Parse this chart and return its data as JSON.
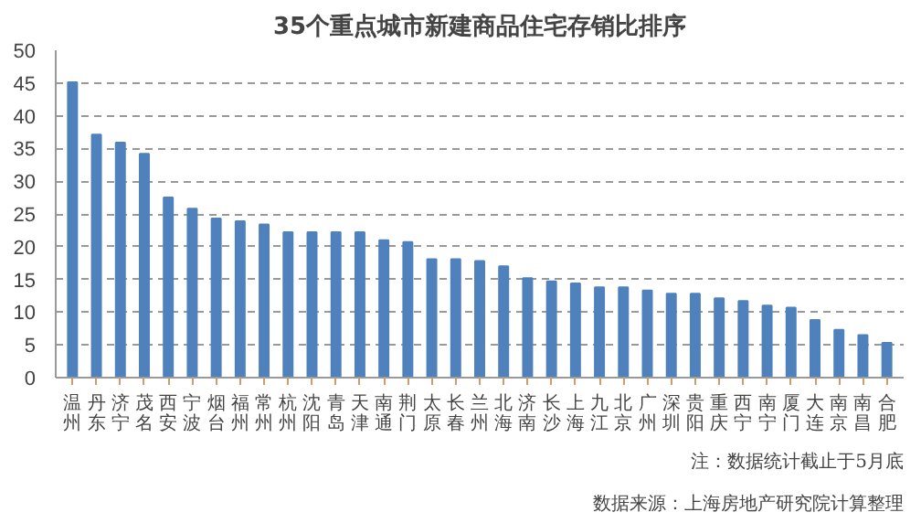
{
  "chart_data": {
    "type": "bar",
    "title": "35个重点城市新建商品住宅存销比排序",
    "categories": [
      "温州",
      "丹东",
      "济宁",
      "茂名",
      "西安",
      "宁波",
      "烟台",
      "福州",
      "常州",
      "杭州",
      "沈阳",
      "青岛",
      "天津",
      "南通",
      "荆门",
      "太原",
      "长春",
      "兰州",
      "北海",
      "济南",
      "长沙",
      "上海",
      "九江",
      "北京",
      "广州",
      "深圳",
      "贵阳",
      "重庆",
      "西宁",
      "南宁",
      "厦门",
      "大连",
      "南京",
      "南昌",
      "合肥"
    ],
    "values": [
      45.1,
      37.1,
      35.9,
      34.2,
      27.5,
      25.8,
      24.3,
      23.9,
      23.4,
      22.2,
      22.2,
      22.2,
      22.2,
      21.0,
      20.7,
      18.1,
      18.1,
      17.8,
      17.0,
      15.2,
      14.7,
      14.4,
      13.8,
      13.8,
      13.3,
      12.8,
      12.8,
      12.1,
      11.7,
      11.0,
      10.7,
      8.8,
      7.3,
      6.5,
      5.3
    ],
    "color": "#4f81bd",
    "ylim": [
      0,
      50
    ],
    "yticks": [
      0,
      5,
      10,
      15,
      20,
      25,
      30,
      35,
      40,
      45,
      50
    ],
    "grid": "y",
    "annotations": [
      "注：数据统计截止于5月底",
      "数据来源：上海房地产研究院计算整理"
    ]
  }
}
